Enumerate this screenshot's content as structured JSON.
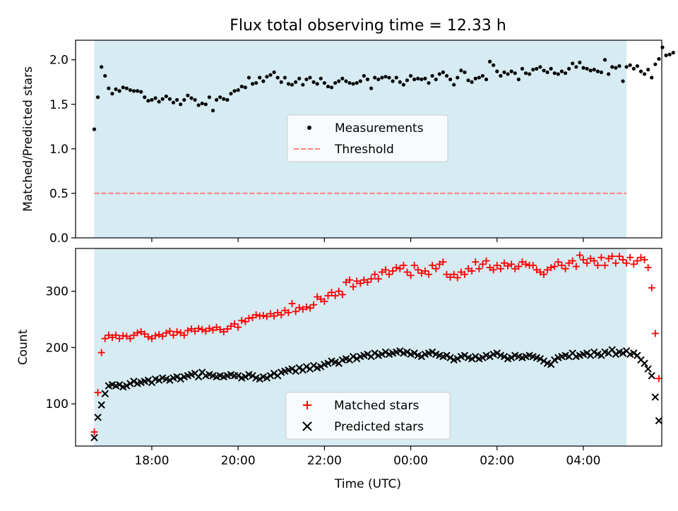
{
  "figure": {
    "title": "Flux total observing time = 12.33 h",
    "background_color": "#ffffff"
  },
  "chart_data": [
    {
      "type": "scatter",
      "ylabel": "Matched/Predicted stars",
      "xlabel": "",
      "x_axis": "time (UTC), plotted on a continuous clock; values after midnight continue past 24:00",
      "xlim": [
        "16:14",
        "05:49"
      ],
      "ylim": [
        0,
        2.22
      ],
      "x_ticks": [
        "18:00",
        "20:00",
        "22:00",
        "00:00",
        "02:00",
        "04:00"
      ],
      "x_tick_labels_shown": false,
      "y_ticks": [
        "0.0",
        "0.5",
        "1.0",
        "1.5",
        "2.0"
      ],
      "grid": false,
      "legend_position": "center",
      "shaded_span": {
        "start": "16:40",
        "end": "05:00",
        "color": "#add8e6"
      },
      "threshold": {
        "name": "Threshold",
        "value": 0.5,
        "color": "#ff7f7f",
        "style": "dashed"
      },
      "series": [
        {
          "name": "Measurements",
          "color": "#000000",
          "marker": "dot",
          "start": "16:40",
          "interval_min": 5,
          "y": [
            1.22,
            1.58,
            1.92,
            1.82,
            1.68,
            1.62,
            1.67,
            1.65,
            1.69,
            1.68,
            1.66,
            1.65,
            1.65,
            1.64,
            1.58,
            1.54,
            1.55,
            1.57,
            1.53,
            1.56,
            1.59,
            1.56,
            1.52,
            1.55,
            1.5,
            1.55,
            1.6,
            1.57,
            1.55,
            1.49,
            1.51,
            1.5,
            1.58,
            1.43,
            1.55,
            1.58,
            1.56,
            1.55,
            1.62,
            1.65,
            1.66,
            1.7,
            1.69,
            1.8,
            1.73,
            1.74,
            1.8,
            1.76,
            1.81,
            1.83,
            1.86,
            1.8,
            1.75,
            1.8,
            1.73,
            1.72,
            1.75,
            1.79,
            1.72,
            1.78,
            1.8,
            1.75,
            1.73,
            1.79,
            1.74,
            1.7,
            1.69,
            1.74,
            1.76,
            1.79,
            1.76,
            1.74,
            1.73,
            1.74,
            1.76,
            1.82,
            1.78,
            1.68,
            1.8,
            1.78,
            1.8,
            1.81,
            1.8,
            1.76,
            1.8,
            1.75,
            1.72,
            1.77,
            1.82,
            1.78,
            1.79,
            1.78,
            1.79,
            1.74,
            1.82,
            1.78,
            1.84,
            1.86,
            1.82,
            1.78,
            1.72,
            1.8,
            1.88,
            1.86,
            1.77,
            1.75,
            1.79,
            1.8,
            1.82,
            1.78,
            1.98,
            1.94,
            1.87,
            1.82,
            1.86,
            1.84,
            1.87,
            1.85,
            1.78,
            1.9,
            1.85,
            1.84,
            1.89,
            1.9,
            1.92,
            1.88,
            1.86,
            1.9,
            1.85,
            1.84,
            1.87,
            1.85,
            1.9,
            1.96,
            1.92,
            1.97,
            1.91,
            1.9,
            1.88,
            1.89,
            1.87,
            1.86,
            2.0,
            1.84,
            1.92,
            1.91,
            1.93,
            1.76,
            1.92,
            1.94,
            1.9,
            1.93,
            1.87,
            1.84,
            1.89,
            1.8,
            1.95,
            2.01,
            2.14,
            2.05,
            2.06,
            2.08
          ]
        }
      ]
    },
    {
      "type": "scatter",
      "title": "",
      "xlabel": "Time (UTC)",
      "ylabel": "Count",
      "x_axis": "time (UTC), plotted on a continuous clock; values after midnight continue past 24:00",
      "xlim": [
        "16:14",
        "05:49"
      ],
      "ylim": [
        25,
        376
      ],
      "x_ticks": [
        "18:00",
        "20:00",
        "22:00",
        "00:00",
        "02:00",
        "04:00"
      ],
      "y_ticks": [
        "100",
        "200",
        "300"
      ],
      "grid": false,
      "legend_position": "lower center",
      "shaded_span": {
        "start": "16:40",
        "end": "05:00",
        "color": "#add8e6"
      },
      "series": [
        {
          "name": "Matched stars",
          "color": "#ff0000",
          "marker": "plus",
          "start": "16:40",
          "interval_min": 5,
          "y": [
            50,
            120,
            191,
            216,
            222,
            218,
            222,
            216,
            221,
            220,
            216,
            222,
            226,
            228,
            224,
            219,
            216,
            221,
            223,
            220,
            226,
            229,
            222,
            228,
            226,
            222,
            230,
            233,
            229,
            234,
            232,
            229,
            234,
            231,
            236,
            232,
            228,
            233,
            238,
            242,
            236,
            248,
            246,
            252,
            253,
            258,
            256,
            257,
            255,
            260,
            256,
            262,
            258,
            266,
            262,
            278,
            264,
            271,
            268,
            272,
            270,
            276,
            290,
            286,
            282,
            292,
            298,
            292,
            300,
            294,
            316,
            320,
            308,
            318,
            314,
            320,
            316,
            322,
            330,
            322,
            334,
            338,
            330,
            336,
            342,
            340,
            346,
            334,
            328,
            346,
            338,
            332,
            336,
            330,
            346,
            340,
            348,
            352,
            330,
            325,
            330,
            324,
            334,
            330,
            340,
            336,
            352,
            340,
            348,
            354,
            342,
            338,
            346,
            340,
            350,
            345,
            348,
            340,
            344,
            352,
            348,
            346,
            346,
            338,
            334,
            330,
            338,
            342,
            344,
            352,
            346,
            340,
            350,
            354,
            344,
            364,
            356,
            350,
            358,
            354,
            346,
            360,
            346,
            358,
            362,
            350,
            362,
            356,
            350,
            360,
            348,
            354,
            360,
            356,
            342,
            306,
            225,
            145
          ]
        },
        {
          "name": "Predicted stars",
          "color": "#000000",
          "marker": "x",
          "start": "16:40",
          "interval_min": 5,
          "y": [
            40,
            76,
            98,
            118,
            132,
            134,
            132,
            134,
            130,
            132,
            136,
            140,
            136,
            138,
            140,
            142,
            138,
            144,
            142,
            146,
            144,
            142,
            146,
            148,
            144,
            148,
            150,
            152,
            154,
            148,
            156,
            150,
            152,
            150,
            148,
            150,
            148,
            150,
            152,
            150,
            150,
            146,
            148,
            152,
            150,
            146,
            144,
            148,
            146,
            150,
            154,
            150,
            156,
            158,
            160,
            162,
            158,
            164,
            160,
            166,
            162,
            168,
            164,
            166,
            170,
            172,
            176,
            174,
            172,
            178,
            180,
            178,
            184,
            180,
            184,
            186,
            188,
            184,
            190,
            186,
            188,
            192,
            188,
            190,
            192,
            194,
            190,
            192,
            188,
            190,
            186,
            184,
            188,
            190,
            192,
            188,
            186,
            184,
            186,
            182,
            178,
            180,
            184,
            186,
            182,
            180,
            184,
            180,
            182,
            186,
            184,
            188,
            190,
            186,
            184,
            180,
            182,
            186,
            184,
            182,
            184,
            186,
            184,
            182,
            180,
            176,
            172,
            170,
            178,
            182,
            184,
            186,
            184,
            190,
            184,
            186,
            188,
            190,
            186,
            192,
            188,
            186,
            192,
            190,
            196,
            188,
            192,
            190,
            194,
            188,
            190,
            186,
            178,
            172,
            162,
            150,
            112,
            70
          ]
        }
      ]
    }
  ]
}
